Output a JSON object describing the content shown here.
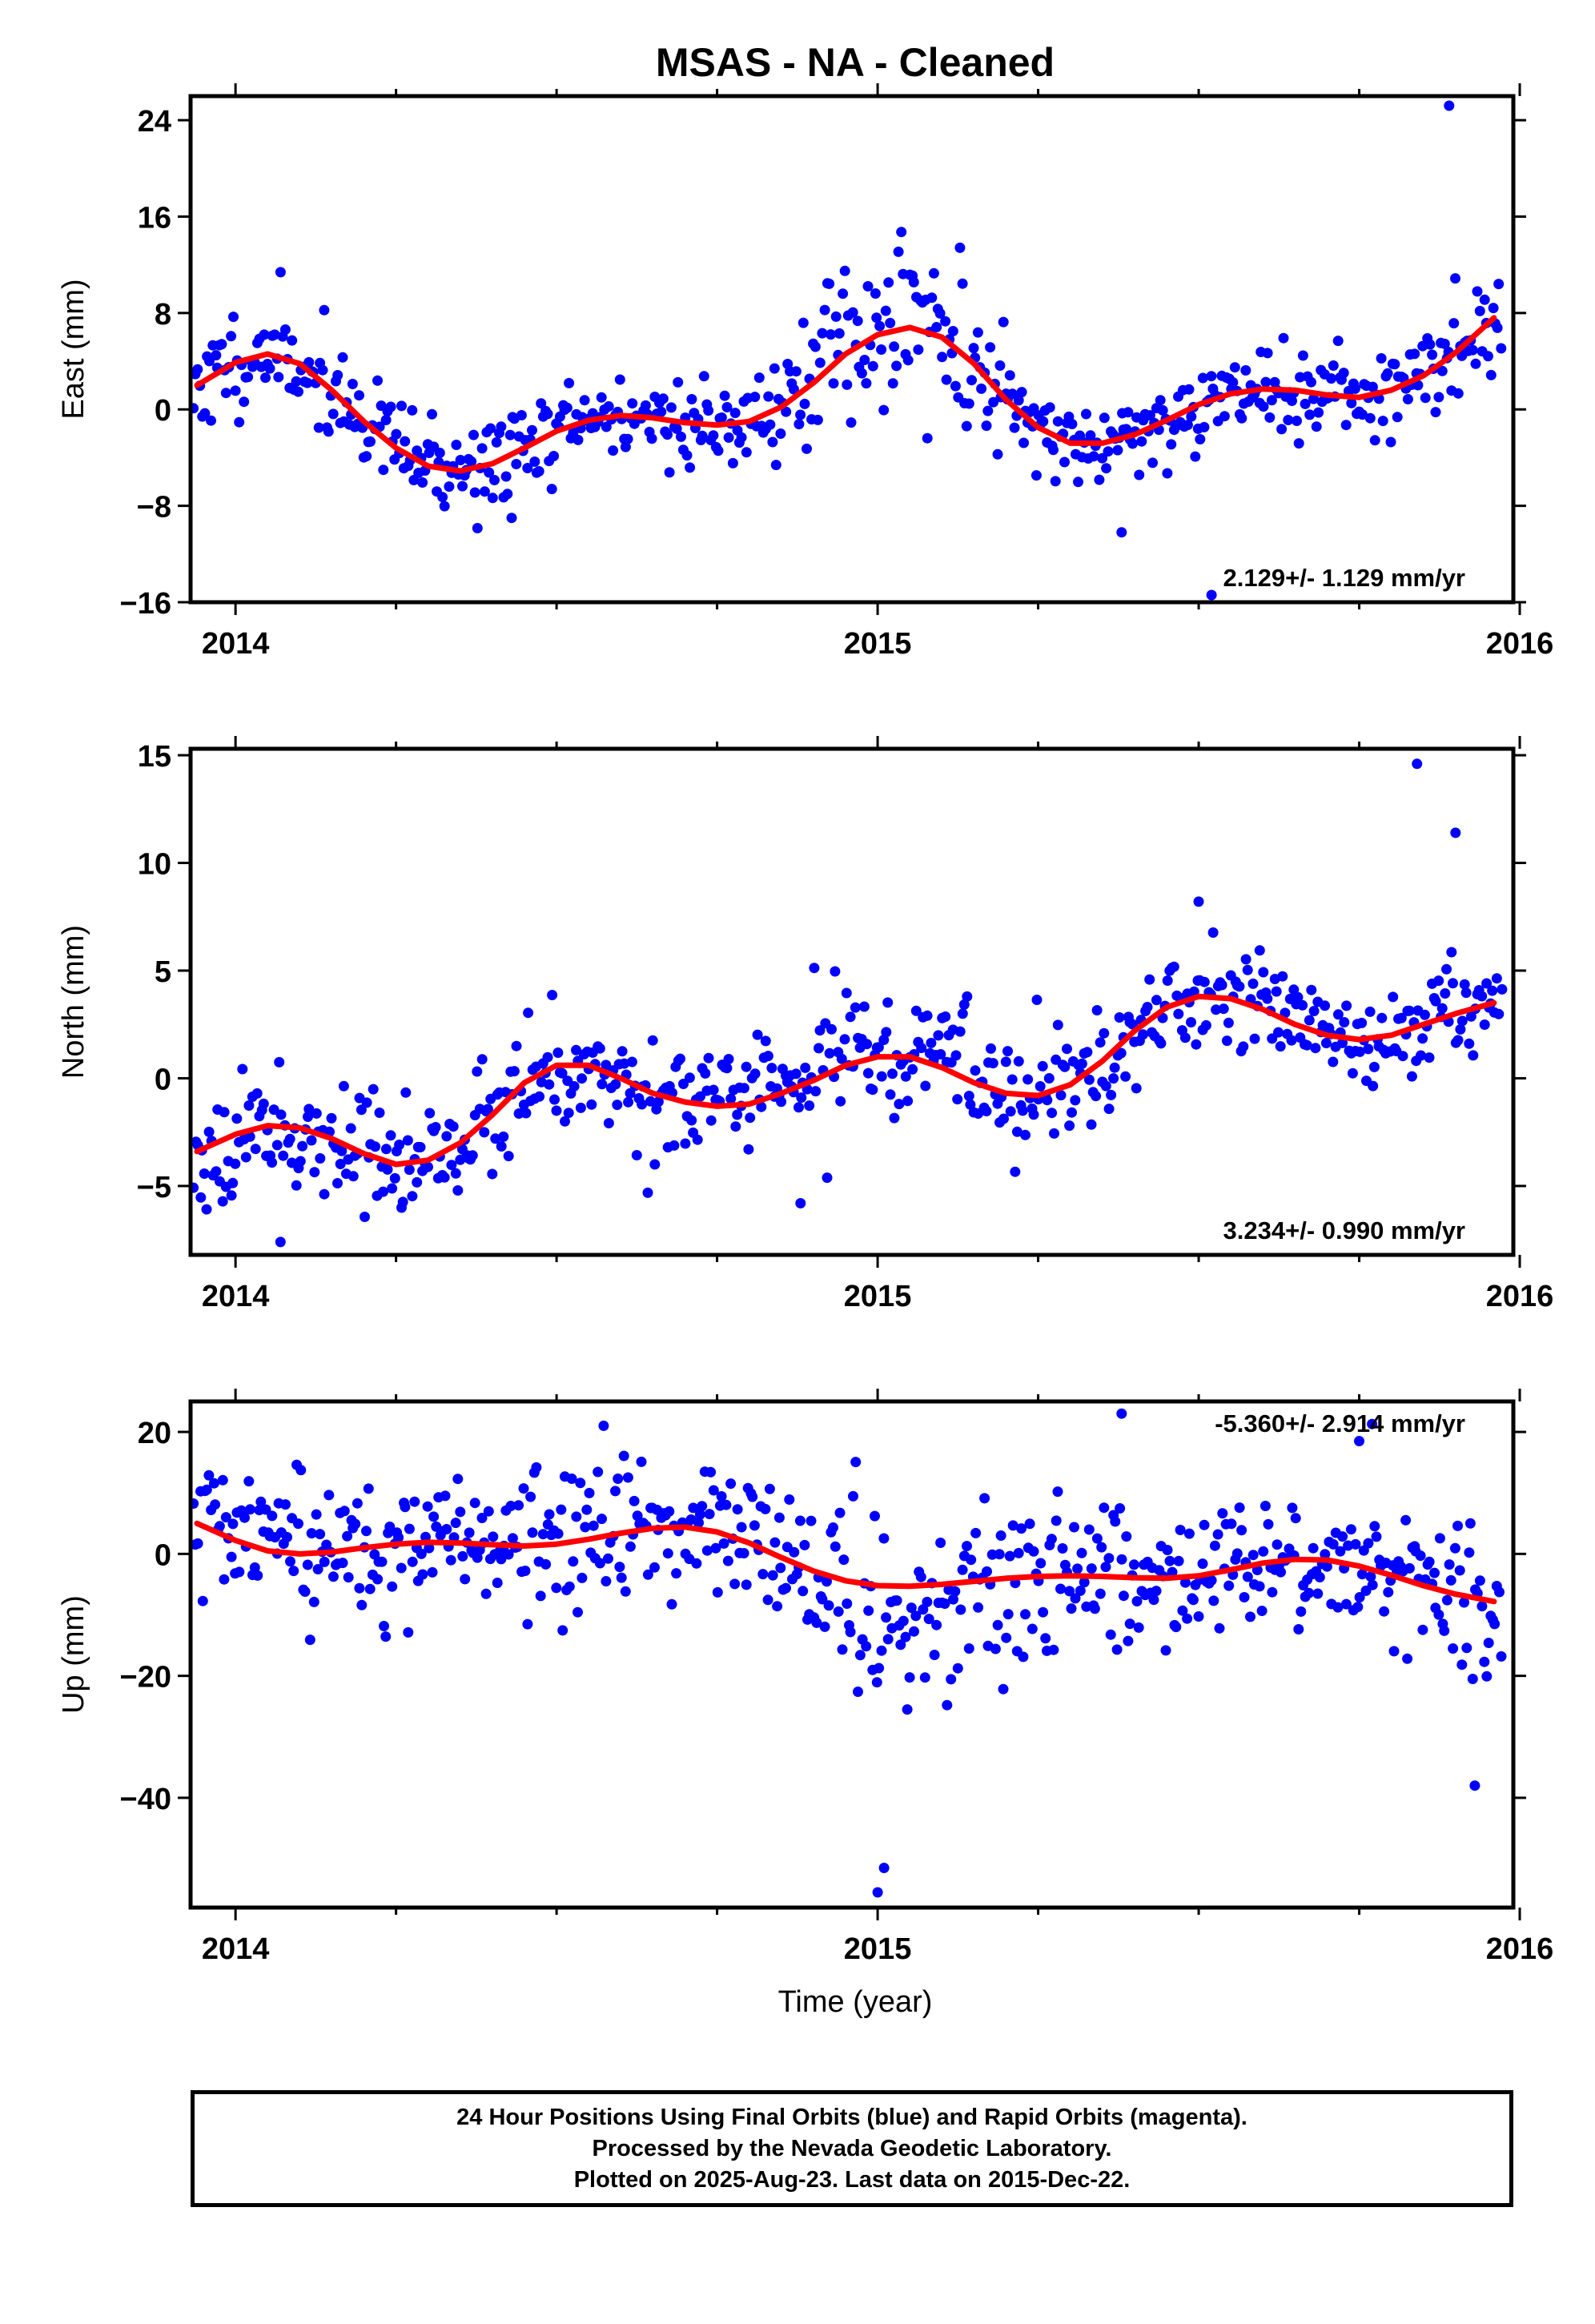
{
  "title": "MSAS  - NA - Cleaned",
  "xlabel": "Time (year)",
  "colors": {
    "data": "#0000ff",
    "fit": "#ff0000",
    "frame": "#000000"
  },
  "footer": {
    "line1": "24 Hour Positions Using Final Orbits (blue) and Rapid Orbits (magenta).",
    "line2": "Processed by the Nevada Geodetic Laboratory.",
    "line3": "Plotted on 2025-Aug-23. Last data on 2015-Dec-22."
  },
  "chart_data": [
    {
      "type": "scatter",
      "ylabel": "East (mm)",
      "rate_label": "2.129+/- 1.129 mm/yr",
      "xlim": [
        2013.93,
        2015.99
      ],
      "ylim": [
        -16,
        26
      ],
      "xticks": [
        2014,
        2015,
        2016
      ],
      "yticks": [
        24,
        16,
        8,
        0,
        -8,
        -16
      ],
      "ytick_labels": [
        "24",
        "16",
        "8",
        "0",
        "−8",
        "−16"
      ],
      "fit": {
        "name": "fit",
        "x": [
          2013.94,
          2014.0,
          2014.05,
          2014.1,
          2014.15,
          2014.2,
          2014.25,
          2014.3,
          2014.35,
          2014.4,
          2014.45,
          2014.5,
          2014.55,
          2014.6,
          2014.65,
          2014.7,
          2014.75,
          2014.8,
          2014.85,
          2014.9,
          2014.95,
          2015.0,
          2015.05,
          2015.1,
          2015.15,
          2015.2,
          2015.25,
          2015.3,
          2015.35,
          2015.4,
          2015.45,
          2015.5,
          2015.55,
          2015.6,
          2015.65,
          2015.7,
          2015.75,
          2015.8,
          2015.85,
          2015.9,
          2015.96
        ],
        "y": [
          2.0,
          3.9,
          4.6,
          3.8,
          1.6,
          -1.0,
          -3.2,
          -4.7,
          -5.1,
          -4.5,
          -3.2,
          -1.8,
          -0.9,
          -0.5,
          -0.7,
          -1.1,
          -1.3,
          -1.0,
          0.2,
          2.2,
          4.6,
          6.2,
          6.8,
          6.0,
          3.8,
          0.8,
          -1.5,
          -2.8,
          -2.8,
          -2.1,
          -0.9,
          0.4,
          1.3,
          1.7,
          1.6,
          1.2,
          1.0,
          1.6,
          2.8,
          4.7,
          7.6
        ]
      },
      "scatter_model": {
        "start": 2013.935,
        "step": 0.0034,
        "count": 600,
        "seed": 11,
        "base_noise": 2.0,
        "extra_noise": [
          {
            "from": 2014.88,
            "to": 2015.2,
            "sigma": 5.5,
            "offset": 2.5
          }
        ],
        "outliers": [
          {
            "x": 2015.89,
            "y": 25.2
          },
          {
            "x": 2015.52,
            "y": -15.4
          },
          {
            "x": 2014.43,
            "y": -9.0
          },
          {
            "x": 2015.38,
            "y": -10.2
          }
        ]
      }
    },
    {
      "type": "scatter",
      "ylabel": "North (mm)",
      "rate_label": "3.234+/- 0.990 mm/yr",
      "xlim": [
        2013.93,
        2015.99
      ],
      "ylim": [
        -8.2,
        15.3
      ],
      "xticks": [
        2014,
        2015,
        2016
      ],
      "yticks": [
        15,
        10,
        5,
        0,
        -5
      ],
      "ytick_labels": [
        "15",
        "10",
        "5",
        "0",
        "−5"
      ],
      "fit": {
        "name": "fit",
        "x": [
          2013.94,
          2014.0,
          2014.05,
          2014.1,
          2014.15,
          2014.2,
          2014.25,
          2014.3,
          2014.35,
          2014.4,
          2014.45,
          2014.5,
          2014.55,
          2014.6,
          2014.65,
          2014.7,
          2014.75,
          2014.8,
          2014.85,
          2014.9,
          2014.95,
          2015.0,
          2015.05,
          2015.1,
          2015.15,
          2015.2,
          2015.25,
          2015.3,
          2015.35,
          2015.4,
          2015.45,
          2015.5,
          2015.55,
          2015.6,
          2015.65,
          2015.7,
          2015.75,
          2015.8,
          2015.85,
          2015.9,
          2015.96
        ],
        "y": [
          -3.4,
          -2.6,
          -2.2,
          -2.3,
          -2.8,
          -3.5,
          -4.0,
          -3.8,
          -3.0,
          -1.7,
          -0.2,
          0.6,
          0.6,
          0.0,
          -0.7,
          -1.1,
          -1.3,
          -1.2,
          -0.7,
          -0.1,
          0.6,
          1.0,
          1.0,
          0.5,
          -0.2,
          -0.7,
          -0.8,
          -0.3,
          0.8,
          2.2,
          3.3,
          3.8,
          3.7,
          3.2,
          2.5,
          2.0,
          1.8,
          2.0,
          2.5,
          3.0,
          3.5
        ]
      },
      "scatter_model": {
        "start": 2013.935,
        "step": 0.0034,
        "count": 600,
        "seed": 23,
        "base_noise": 1.3,
        "extra_noise": [
          {
            "from": 2014.9,
            "to": 2015.15,
            "sigma": 1.8,
            "offset": 1.2
          }
        ],
        "outliers": [
          {
            "x": 2015.84,
            "y": 14.6
          },
          {
            "x": 2015.9,
            "y": 11.4
          },
          {
            "x": 2015.5,
            "y": 8.2
          },
          {
            "x": 2014.07,
            "y": -7.6
          },
          {
            "x": 2014.88,
            "y": -5.8
          }
        ]
      }
    },
    {
      "type": "scatter",
      "ylabel": "Up (mm)",
      "rate_label": "-5.360+/- 2.914 mm/yr",
      "xlim": [
        2013.93,
        2015.99
      ],
      "ylim": [
        -58,
        25
      ],
      "xticks": [
        2014,
        2015,
        2016
      ],
      "yticks": [
        20,
        0,
        -20,
        -40
      ],
      "ytick_labels": [
        "20",
        "0",
        "−20",
        "−40"
      ],
      "fit": {
        "name": "fit",
        "x": [
          2013.94,
          2014.0,
          2014.05,
          2014.1,
          2014.15,
          2014.2,
          2014.25,
          2014.3,
          2014.35,
          2014.4,
          2014.45,
          2014.5,
          2014.55,
          2014.6,
          2014.65,
          2014.7,
          2014.75,
          2014.8,
          2014.85,
          2014.9,
          2014.95,
          2015.0,
          2015.05,
          2015.1,
          2015.15,
          2015.2,
          2015.25,
          2015.3,
          2015.35,
          2015.4,
          2015.45,
          2015.5,
          2015.55,
          2015.6,
          2015.65,
          2015.7,
          2015.75,
          2015.8,
          2015.85,
          2015.9,
          2015.96
        ],
        "y": [
          5.0,
          2.2,
          0.5,
          0.0,
          0.3,
          1.0,
          1.6,
          1.9,
          1.8,
          1.5,
          1.3,
          1.6,
          2.4,
          3.4,
          4.2,
          4.4,
          3.6,
          1.8,
          -0.6,
          -2.8,
          -4.4,
          -5.2,
          -5.3,
          -5.0,
          -4.5,
          -4.0,
          -3.7,
          -3.6,
          -3.7,
          -3.9,
          -4.0,
          -3.6,
          -2.6,
          -1.5,
          -0.9,
          -1.0,
          -2.0,
          -3.5,
          -5.2,
          -6.6,
          -7.8
        ]
      },
      "scatter_model": {
        "start": 2013.935,
        "step": 0.0034,
        "count": 600,
        "seed": 37,
        "base_noise": 6.0,
        "extra_noise": [
          {
            "from": 2014.95,
            "to": 2015.2,
            "sigma": 10.0,
            "offset": -6.0
          },
          {
            "from": 2015.9,
            "to": 2015.99,
            "sigma": 9.0,
            "offset": -8.0
          }
        ],
        "outliers": [
          {
            "x": 2015.0,
            "y": -55.5
          },
          {
            "x": 2015.01,
            "y": -51.5
          },
          {
            "x": 2015.38,
            "y": 23.0
          },
          {
            "x": 2015.93,
            "y": -38.0
          },
          {
            "x": 2015.75,
            "y": 18.5
          },
          {
            "x": 2015.77,
            "y": 21.3
          }
        ]
      }
    }
  ]
}
